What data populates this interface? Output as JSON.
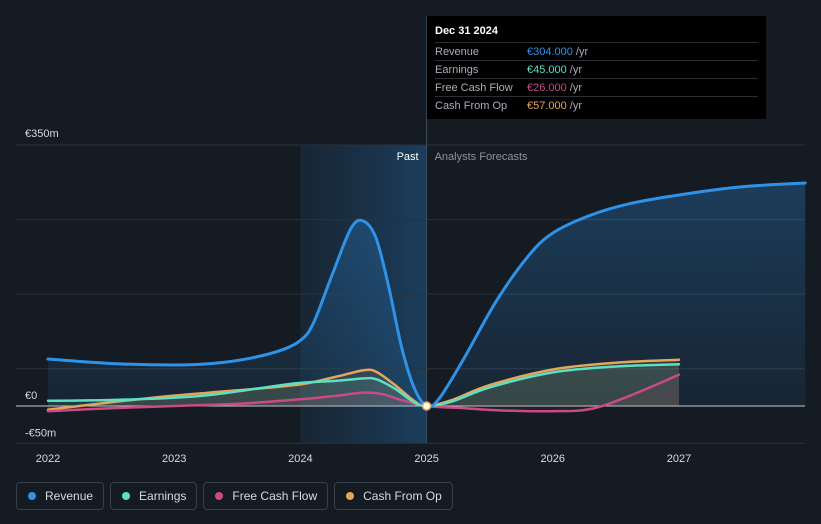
{
  "chart_data": {
    "type": "line",
    "title": "",
    "x_labels": [
      "2022",
      "2023",
      "2024",
      "2025",
      "2026",
      "2027"
    ],
    "y_labels": [
      "€350m",
      "€0",
      "-€50m"
    ],
    "ylim": [
      -50,
      350
    ],
    "xlim": [
      2021.8,
      2028.0
    ],
    "past_label": "Past",
    "forecast_label": "Analysts Forecasts",
    "past_band": [
      2024.0,
      2025.0
    ],
    "highlight_x": 2025.0,
    "series": [
      {
        "name": "Revenue",
        "color": "#2e93e8",
        "points": [
          [
            2022.0,
            63
          ],
          [
            2022.5,
            57
          ],
          [
            2023.0,
            55
          ],
          [
            2023.3,
            57
          ],
          [
            2023.6,
            64
          ],
          [
            2023.85,
            75
          ],
          [
            2024.0,
            88
          ],
          [
            2024.1,
            110
          ],
          [
            2024.25,
            175
          ],
          [
            2024.4,
            238
          ],
          [
            2024.5,
            248
          ],
          [
            2024.6,
            225
          ],
          [
            2024.7,
            160
          ],
          [
            2024.8,
            80
          ],
          [
            2024.9,
            25
          ],
          [
            2025.0,
            0
          ],
          [
            2025.1,
            10
          ],
          [
            2025.3,
            65
          ],
          [
            2025.55,
            140
          ],
          [
            2025.8,
            200
          ],
          [
            2026.0,
            232
          ],
          [
            2026.3,
            256
          ],
          [
            2026.6,
            271
          ],
          [
            2027.0,
            283
          ],
          [
            2027.5,
            294
          ],
          [
            2028.0,
            299
          ]
        ]
      },
      {
        "name": "Earnings",
        "color": "#5ce0c3",
        "points": [
          [
            2022.0,
            7
          ],
          [
            2022.5,
            8
          ],
          [
            2023.0,
            11
          ],
          [
            2023.3,
            15
          ],
          [
            2023.6,
            22
          ],
          [
            2023.85,
            28
          ],
          [
            2024.0,
            31
          ],
          [
            2024.3,
            34
          ],
          [
            2024.5,
            37
          ],
          [
            2024.6,
            36
          ],
          [
            2024.75,
            23
          ],
          [
            2024.9,
            5
          ],
          [
            2025.0,
            0
          ],
          [
            2025.2,
            6
          ],
          [
            2025.5,
            25
          ],
          [
            2026.0,
            45
          ],
          [
            2026.5,
            53
          ],
          [
            2027.0,
            56
          ]
        ]
      },
      {
        "name": "Free Cash Flow",
        "color": "#c94a85",
        "points": [
          [
            2022.0,
            -7
          ],
          [
            2022.5,
            -3
          ],
          [
            2023.0,
            0
          ],
          [
            2023.5,
            3
          ],
          [
            2024.0,
            9
          ],
          [
            2024.3,
            14
          ],
          [
            2024.5,
            18
          ],
          [
            2024.65,
            16
          ],
          [
            2024.8,
            8
          ],
          [
            2025.0,
            0
          ],
          [
            2025.3,
            -3
          ],
          [
            2025.6,
            -6
          ],
          [
            2026.0,
            -7
          ],
          [
            2026.3,
            -4
          ],
          [
            2026.6,
            13
          ],
          [
            2027.0,
            42
          ]
        ]
      },
      {
        "name": "Cash From Op",
        "color": "#e5a65c",
        "points": [
          [
            2022.0,
            -5
          ],
          [
            2022.5,
            5
          ],
          [
            2023.0,
            14
          ],
          [
            2023.5,
            21
          ],
          [
            2024.0,
            29
          ],
          [
            2024.3,
            40
          ],
          [
            2024.5,
            48
          ],
          [
            2024.6,
            46
          ],
          [
            2024.75,
            28
          ],
          [
            2024.9,
            7
          ],
          [
            2025.0,
            0
          ],
          [
            2025.2,
            8
          ],
          [
            2025.5,
            28
          ],
          [
            2026.0,
            49
          ],
          [
            2026.5,
            58
          ],
          [
            2027.0,
            62
          ]
        ]
      }
    ]
  },
  "tooltip": {
    "date": "Dec 31 2024",
    "rows": [
      {
        "label": "Revenue",
        "value": "€304.000",
        "unit": "/yr",
        "color": "#2e93e8"
      },
      {
        "label": "Earnings",
        "value": "€45.000",
        "unit": "/yr",
        "color": "#5ce0c3"
      },
      {
        "label": "Free Cash Flow",
        "value": "€26.000",
        "unit": "/yr",
        "color": "#c94a85"
      },
      {
        "label": "Cash From Op",
        "value": "€57.000",
        "unit": "/yr",
        "color": "#e5a65c"
      }
    ]
  },
  "legend": [
    {
      "label": "Revenue",
      "color": "#2e93e8"
    },
    {
      "label": "Earnings",
      "color": "#5ce0c3"
    },
    {
      "label": "Free Cash Flow",
      "color": "#c94a85"
    },
    {
      "label": "Cash From Op",
      "color": "#e5a65c"
    }
  ]
}
